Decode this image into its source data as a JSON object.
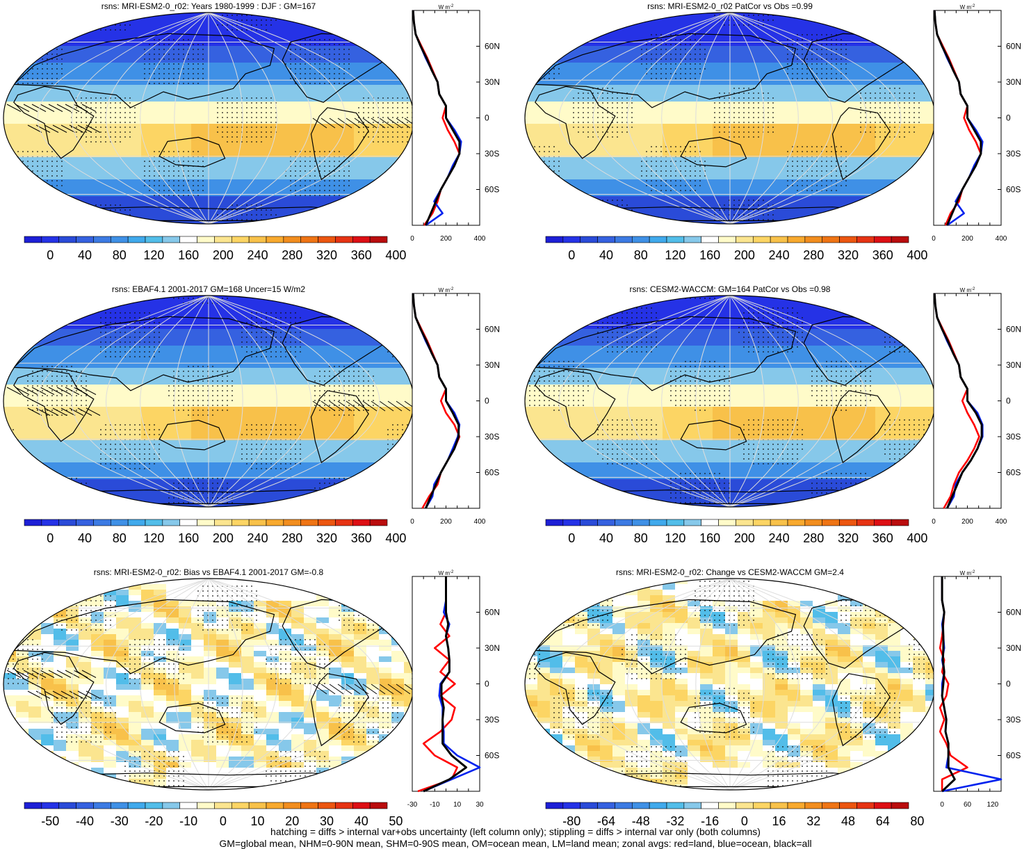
{
  "colorbars": {
    "abs": {
      "colors": [
        "#1d1fd6",
        "#2532e6",
        "#2a4bd8",
        "#3561e0",
        "#3c7ae3",
        "#3f90e6",
        "#40a9ec",
        "#52bde9",
        "#86c8ea",
        "#ffffff",
        "#fffbc9",
        "#fbe58f",
        "#fcd564",
        "#f8c14a",
        "#f8a92e",
        "#f28d1e",
        "#ef7414",
        "#ec5610",
        "#e63313",
        "#dd0f14",
        "#b90d0e"
      ],
      "labels": [
        "0",
        "40",
        "80",
        "120",
        "160",
        "200",
        "240",
        "280",
        "320",
        "360",
        "400"
      ]
    },
    "bias": {
      "colors": [
        "#1d1fd6",
        "#2532e6",
        "#2a4bd8",
        "#3561e0",
        "#3c7ae3",
        "#3f90e6",
        "#40a9ec",
        "#52bde9",
        "#86c8ea",
        "#ffffff",
        "#fffbc9",
        "#fbe58f",
        "#fcd564",
        "#f8c14a",
        "#f8a92e",
        "#f28d1e",
        "#ef7414",
        "#ec5610",
        "#e63313",
        "#dd0f14",
        "#b90d0e"
      ],
      "labels": [
        "-50",
        "-40",
        "-30",
        "-20",
        "-10",
        "0",
        "10",
        "20",
        "30",
        "40",
        "50"
      ]
    },
    "change": {
      "colors": [
        "#1d1fd6",
        "#2532e6",
        "#2a4bd8",
        "#3561e0",
        "#3c7ae3",
        "#3f90e6",
        "#40a9ec",
        "#52bde9",
        "#86c8ea",
        "#ffffff",
        "#fffbc9",
        "#fbe58f",
        "#fcd564",
        "#f8c14a",
        "#f8a92e",
        "#f28d1e",
        "#ef7414",
        "#ec5610",
        "#e63313",
        "#dd0f14",
        "#b90d0e"
      ],
      "labels": [
        "-80",
        "-64",
        "-48",
        "-32",
        "-16",
        "0",
        "16",
        "32",
        "48",
        "64",
        "80"
      ]
    }
  },
  "line_colors": {
    "land": "#ff0000",
    "ocean": "#0022ee",
    "all": "#000000"
  },
  "zonal_unit": "W m",
  "zonal_unit_sup": "-2",
  "lat_ticks": [
    "60N",
    "30N",
    "0",
    "30S",
    "60S"
  ],
  "chart_data": [
    {
      "type": "map",
      "id": "p1",
      "title": "rsns: MRI-ESM2-0_r02: Years 1980-1999 : DJF : GM=167",
      "field": "abs",
      "hatching": true,
      "colorbar": "abs",
      "zonal": {
        "xlim": [
          0,
          400
        ],
        "xticks": [
          "0",
          "200",
          "400"
        ],
        "lat": [
          -90,
          -80,
          -70,
          -60,
          -50,
          -40,
          -30,
          -20,
          -10,
          0,
          10,
          20,
          30,
          40,
          50,
          60,
          70,
          80,
          90
        ],
        "land": [
          70,
          120,
          150,
          170,
          210,
          250,
          280,
          250,
          210,
          180,
          200,
          160,
          150,
          120,
          90,
          55,
          20,
          10,
          5
        ],
        "ocean": [
          80,
          180,
          130,
          170,
          210,
          240,
          280,
          290,
          250,
          200,
          200,
          160,
          150,
          115,
          80,
          50,
          20,
          10,
          5
        ],
        "all": [
          80,
          110,
          140,
          170,
          210,
          250,
          280,
          280,
          240,
          200,
          200,
          160,
          150,
          115,
          85,
          50,
          20,
          10,
          5
        ]
      }
    },
    {
      "type": "map",
      "id": "p2",
      "title": "rsns: MRI-ESM2-0_r02 PatCor vs Obs =0.99",
      "field": "abs",
      "hatching": false,
      "colorbar": "abs",
      "zonal": {
        "xlim": [
          0,
          400
        ],
        "xticks": [
          "0",
          "200",
          "400"
        ],
        "lat": [
          -90,
          -80,
          -70,
          -60,
          -50,
          -40,
          -30,
          -20,
          -10,
          0,
          10,
          20,
          30,
          40,
          50,
          60,
          70,
          80,
          90
        ],
        "land": [
          70,
          100,
          150,
          170,
          210,
          250,
          280,
          250,
          210,
          180,
          200,
          160,
          150,
          120,
          90,
          55,
          20,
          10,
          5
        ],
        "ocean": [
          80,
          180,
          130,
          170,
          210,
          240,
          280,
          290,
          250,
          200,
          200,
          160,
          150,
          115,
          80,
          50,
          20,
          10,
          5
        ],
        "all": [
          80,
          110,
          140,
          170,
          210,
          250,
          280,
          280,
          240,
          200,
          200,
          160,
          150,
          115,
          85,
          50,
          20,
          10,
          5
        ]
      }
    },
    {
      "type": "map",
      "id": "p3",
      "title": "rsns: EBAF4.1 2001-2017 GM=168 Uncer=15 W/m2",
      "field": "abs",
      "hatching": true,
      "colorbar": "abs",
      "zonal": {
        "xlim": [
          0,
          400
        ],
        "xticks": [
          "0",
          "200",
          "400"
        ],
        "lat": [
          -90,
          -80,
          -70,
          -60,
          -50,
          -40,
          -30,
          -20,
          -10,
          0,
          10,
          20,
          30,
          40,
          50,
          60,
          70,
          80,
          90
        ],
        "land": [
          60,
          100,
          150,
          170,
          210,
          250,
          280,
          250,
          200,
          170,
          200,
          160,
          150,
          120,
          90,
          55,
          20,
          10,
          5
        ],
        "ocean": [
          80,
          120,
          130,
          170,
          210,
          240,
          270,
          280,
          250,
          200,
          200,
          160,
          150,
          115,
          80,
          50,
          20,
          10,
          5
        ],
        "all": [
          80,
          110,
          140,
          170,
          210,
          250,
          275,
          275,
          240,
          200,
          200,
          160,
          150,
          115,
          85,
          50,
          20,
          10,
          5
        ]
      }
    },
    {
      "type": "map",
      "id": "p4",
      "title": "rsns: CESM2-WACCM: GM=164 PatCor vs Obs =0.98",
      "field": "abs",
      "hatching": false,
      "colorbar": "abs",
      "zonal": {
        "xlim": [
          0,
          400
        ],
        "xticks": [
          "0",
          "200",
          "400"
        ],
        "lat": [
          -90,
          -80,
          -70,
          -60,
          -50,
          -40,
          -30,
          -20,
          -10,
          0,
          10,
          20,
          30,
          40,
          50,
          60,
          70,
          80,
          90
        ],
        "land": [
          60,
          100,
          120,
          150,
          200,
          240,
          270,
          240,
          200,
          170,
          200,
          160,
          150,
          120,
          90,
          55,
          20,
          10,
          5
        ],
        "ocean": [
          80,
          120,
          130,
          170,
          220,
          260,
          290,
          290,
          260,
          200,
          200,
          160,
          150,
          115,
          80,
          50,
          20,
          10,
          5
        ],
        "all": [
          80,
          110,
          140,
          170,
          220,
          260,
          285,
          285,
          250,
          200,
          200,
          160,
          150,
          115,
          85,
          50,
          20,
          10,
          5
        ]
      }
    },
    {
      "type": "map",
      "id": "p5",
      "title": "rsns: MRI-ESM2-0_r02: Bias vs EBAF4.1 2001-2017 GM=-0.8",
      "field": "bias",
      "hatching": true,
      "colorbar": "bias",
      "zonal": {
        "xlim": [
          -30,
          30
        ],
        "xticks": [
          "-30",
          "-10",
          "10",
          "30"
        ],
        "lat": [
          -90,
          -80,
          -70,
          -60,
          -50,
          -40,
          -30,
          -20,
          -10,
          0,
          10,
          20,
          30,
          40,
          50,
          60,
          70,
          80,
          90
        ],
        "land": [
          -25,
          5,
          10,
          -10,
          -20,
          -5,
          5,
          8,
          -5,
          8,
          -5,
          3,
          -10,
          3,
          -5,
          0,
          0,
          0,
          0
        ],
        "ocean": [
          -20,
          5,
          30,
          10,
          -2,
          -2,
          -3,
          -3,
          -6,
          -5,
          3,
          3,
          2,
          0,
          3,
          -2,
          0,
          0,
          0
        ],
        "all": [
          -20,
          3,
          18,
          5,
          -3,
          -3,
          -3,
          -2,
          -4,
          -4,
          3,
          3,
          2,
          0,
          2,
          0,
          0,
          0,
          0
        ]
      }
    },
    {
      "type": "map",
      "id": "p6",
      "title": "rsns: MRI-ESM2-0_r02: Change vs CESM2-WACCM GM=2.4",
      "field": "change",
      "hatching": false,
      "colorbar": "change",
      "zonal": {
        "xlim": [
          -20,
          140
        ],
        "xticks": [
          "0",
          "60",
          "120"
        ],
        "lat": [
          -90,
          -80,
          -70,
          -60,
          -50,
          -40,
          -30,
          -20,
          -10,
          0,
          10,
          20,
          30,
          40,
          50,
          60,
          70,
          80,
          90
        ],
        "land": [
          0,
          0,
          60,
          20,
          10,
          -5,
          5,
          -5,
          10,
          15,
          0,
          5,
          -5,
          0,
          3,
          5,
          0,
          0,
          0
        ],
        "ocean": [
          0,
          140,
          10,
          15,
          15,
          8,
          10,
          5,
          0,
          0,
          5,
          0,
          5,
          3,
          0,
          5,
          0,
          0,
          0
        ],
        "all": [
          0,
          30,
          15,
          15,
          15,
          8,
          10,
          5,
          0,
          3,
          5,
          2,
          3,
          3,
          2,
          5,
          0,
          0,
          0
        ]
      }
    }
  ],
  "footer": {
    "line1": "hatching = diffs > internal var+obs uncertainty (left column only); stippling = diffs > internal var only (both columns)",
    "line2": "GM=global mean, NHM=0-90N mean, SHM=0-90S mean, OM=ocean mean, LM=land mean; zonal avgs: red=land, blue=ocean, black=all"
  }
}
